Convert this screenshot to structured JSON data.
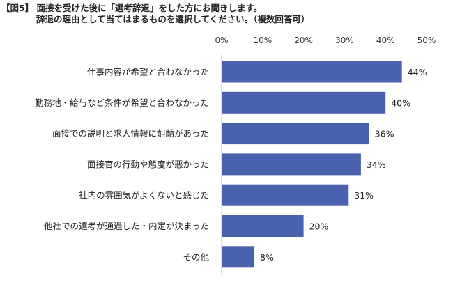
{
  "title": {
    "line1": "【図5】 面接を受けた後に「選考辞退」をした方にお聞きします。",
    "line2": "辞退の理由として当てはまるものを選択してください。（複数回答可）"
  },
  "chart_data": {
    "type": "bar",
    "orientation": "horizontal",
    "categories": [
      "仕事内容が希望と合わなかった",
      "勤務地・給与など条件が希望と合わなかった",
      "面接での説明と求人情報に齟齬があった",
      "面接官の行動や態度が悪かった",
      "社内の雰囲気がよくないと感じた",
      "他社での選考が通過した・内定が決まった",
      "その他"
    ],
    "values": [
      44,
      40,
      36,
      34,
      31,
      20,
      8
    ],
    "value_labels": [
      "44%",
      "40%",
      "36%",
      "34%",
      "31%",
      "20%",
      "8%"
    ],
    "xlim": [
      0,
      50
    ],
    "x_ticks": [
      0,
      10,
      20,
      30,
      40,
      50
    ],
    "x_tick_labels": [
      "0%",
      "10%",
      "20%",
      "30%",
      "40%",
      "50%"
    ],
    "x_axis_position": "top",
    "grid": false,
    "legend": "none",
    "bar_color": "#4a62ad"
  }
}
